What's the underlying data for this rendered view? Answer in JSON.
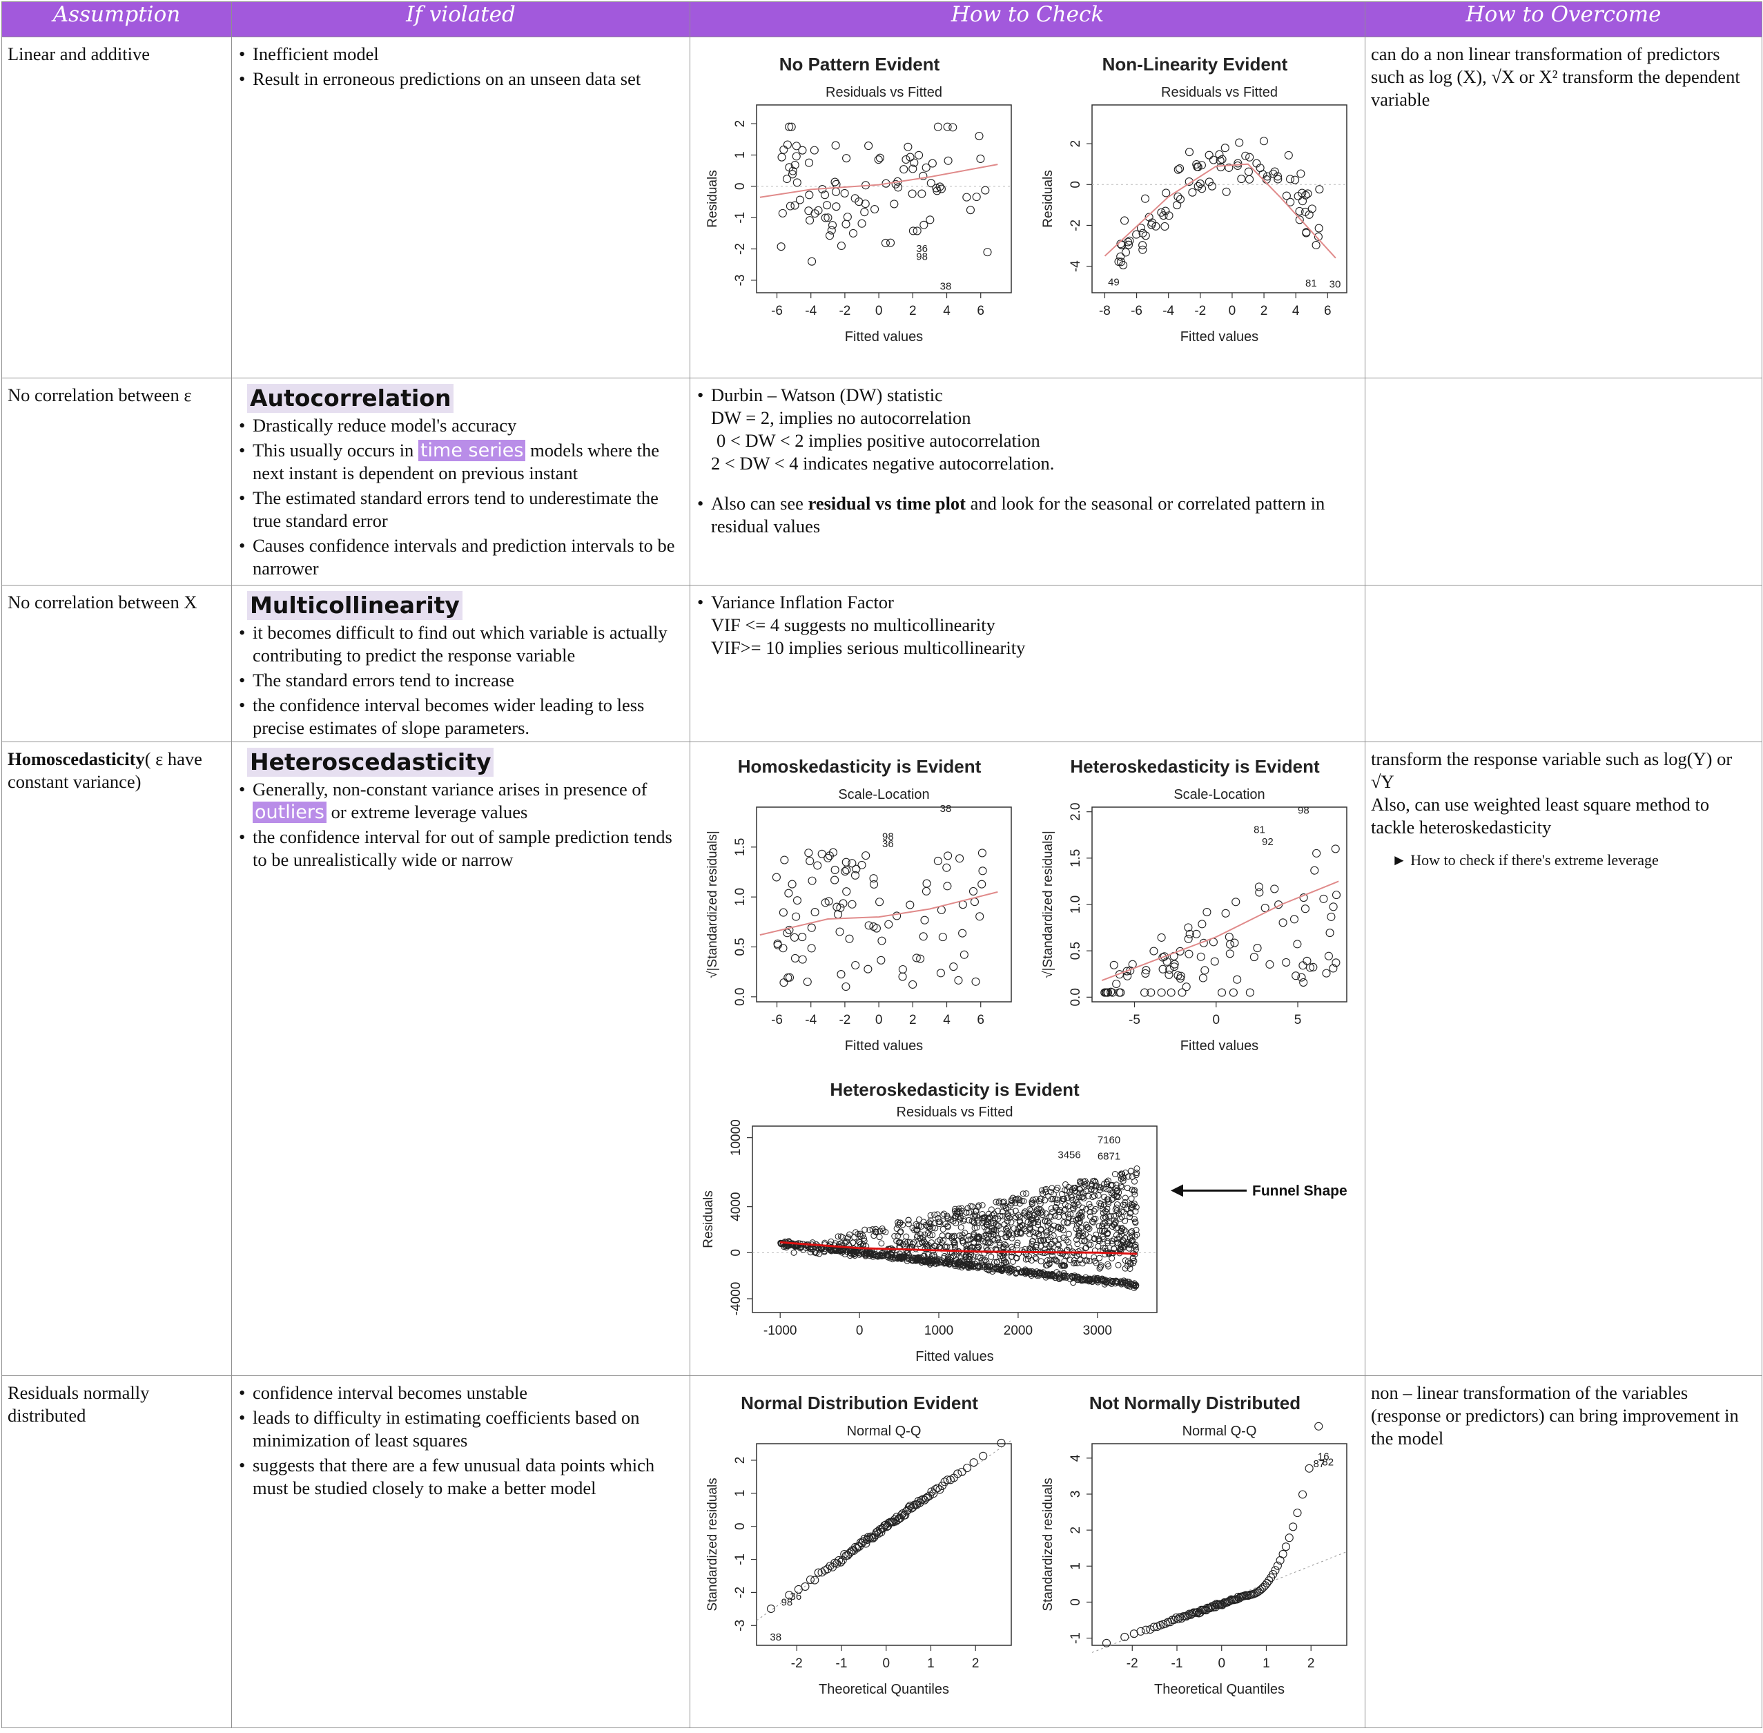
{
  "header": {
    "assumption": "Assumption",
    "if_violated": "If violated",
    "how_to_check": "How to Check",
    "how_to_overcome": "How to Overcome"
  },
  "rows": {
    "linear": {
      "assumption": "Linear and additive",
      "violated": [
        "Inefficient model",
        "Result in erroneous predictions on an unseen data set"
      ],
      "overcome": "can do a non linear transformation of predictors such as log (X), √X or X² transform the dependent variable"
    },
    "autocorr": {
      "assumption": "No correlation between ε",
      "heading": "Autocorrelation",
      "b1": "Drastically reduce model's accuracy",
      "b2_pre": "This usually occurs in",
      "b2_hl": "time series",
      "b2_post": "models where the next instant is dependent on previous instant",
      "b3": "The estimated standard errors tend to underestimate the true standard error",
      "b4": "Causes confidence intervals and prediction intervals to be narrower",
      "check_title": "Durbin – Watson (DW) statistic",
      "check_l1": "DW = 2, implies no autocorrelation",
      "check_l2": "0 < DW < 2 implies positive autocorrelation",
      "check_l3": "2 < DW < 4 indicates negative autocorrelation.",
      "check2_pre": "Also can see",
      "check2_bold": "residual vs time plot",
      "check2_post": "and look for the seasonal or correlated pattern in residual values"
    },
    "multicol": {
      "assumption": "No correlation between X",
      "heading": "Multicollinearity",
      "violated": [
        "it becomes difficult to find out which variable is actually contributing to predict the response variable",
        "The standard errors tend to increase",
        " the confidence interval becomes wider leading to less precise estimates of slope parameters."
      ],
      "check_title": "Variance Inflation Factor",
      "check_l1": "VIF <= 4 suggests no multicollinearity",
      "check_l2": "VIF>= 10 implies serious multicollinearity"
    },
    "homo": {
      "assumption_bold": "Homoscedasticity",
      "assumption_rest": "( ε have constant variance)",
      "heading": "Heteroscedasticity",
      "b1_pre": "Generally, non-constant variance arises in presence of",
      "b1_hl": "outliers",
      "b1_post": "or extreme leverage values",
      "b2": "the confidence interval for out of sample prediction tends to be unrealistically wide or narrow",
      "overcome_l1": "transform the response variable such as log(Y) or √Y",
      "overcome_l2": "Also, can use weighted least square method to tackle heteroskedasticity",
      "link": "► How to check if there's extreme leverage"
    },
    "normal": {
      "assumption": "Residuals normally distributed",
      "violated": [
        "confidence interval becomes unstable",
        "leads to difficulty in estimating coefficients based on minimization of least squares",
        "suggests that there are a few unusual data points which must be studied closely to make a better model"
      ],
      "overcome": "non – linear transformation of the variables (response or predictors) can bring improvement in the model"
    }
  },
  "chart_data": [
    {
      "id": "c1",
      "type": "scatter",
      "heading": "No Pattern Evident",
      "title": "Residuals vs Fitted",
      "xlabel": "Fitted values",
      "ylabel": "Residuals",
      "xlim": [
        -7.2,
        7.8
      ],
      "ylim": [
        -3.4,
        2.6
      ],
      "xticks": [
        -6,
        -4,
        -2,
        0,
        2,
        4,
        6
      ],
      "yticks": [
        -3,
        -2,
        -1,
        0,
        1,
        2
      ],
      "labels": [
        {
          "x": 2.2,
          "y": -2.1,
          "t": "36"
        },
        {
          "x": 2.2,
          "y": -2.35,
          "t": "98"
        },
        {
          "x": 3.6,
          "y": -3.3,
          "t": "38"
        }
      ],
      "trend": [
        [
          -7,
          -0.35
        ],
        [
          -4,
          -0.1
        ],
        [
          0,
          0.05
        ],
        [
          3,
          0.3
        ],
        [
          7,
          0.7
        ]
      ],
      "pattern": "random",
      "seed": 11,
      "n": 95
    },
    {
      "id": "c2",
      "type": "scatter",
      "heading": "Non-Linearity Evident",
      "title": "Residuals vs Fitted",
      "xlabel": "Fitted values",
      "ylabel": "Residuals",
      "xlim": [
        -8.8,
        7.2
      ],
      "ylim": [
        -5.3,
        3.9
      ],
      "xticks": [
        -8,
        -6,
        -4,
        -2,
        0,
        2,
        4,
        6
      ],
      "yticks": [
        -4,
        -2,
        0,
        2
      ],
      "labels": [
        {
          "x": -7.8,
          "y": -4.95,
          "t": "49"
        },
        {
          "x": 4.6,
          "y": -5.0,
          "t": "81"
        },
        {
          "x": 6.1,
          "y": -5.05,
          "t": "30"
        }
      ],
      "trend": [
        [
          -8,
          -3.5
        ],
        [
          -4,
          -0.6
        ],
        [
          -1,
          0.9
        ],
        [
          1,
          1.0
        ],
        [
          3,
          -0.6
        ],
        [
          6.5,
          -3.6
        ]
      ],
      "pattern": "arch",
      "seed": 23,
      "n": 95
    },
    {
      "id": "c3",
      "type": "scatter",
      "heading": "Homoskedasticity is Evident",
      "title": "Scale-Location",
      "xlabel": "Fitted values",
      "ylabel": "√|Standardized residuals|",
      "xlim": [
        -7.2,
        7.8
      ],
      "ylim": [
        -0.05,
        1.9
      ],
      "xticks": [
        -6,
        -4,
        -2,
        0,
        2,
        4,
        6
      ],
      "yticks": [
        0.0,
        0.5,
        1.0,
        1.5
      ],
      "labels": [
        {
          "x": 3.6,
          "y": 1.85,
          "t": "38"
        },
        {
          "x": 0.2,
          "y": 1.57,
          "t": "98"
        },
        {
          "x": 0.2,
          "y": 1.5,
          "t": "36"
        }
      ],
      "trend": [
        [
          -7,
          0.62
        ],
        [
          -3,
          0.78
        ],
        [
          0,
          0.8
        ],
        [
          3,
          0.88
        ],
        [
          7,
          1.05
        ]
      ],
      "pattern": "uniform",
      "seed": 37,
      "n": 95
    },
    {
      "id": "c4",
      "type": "scatter",
      "heading": "Heteroskedasticity is Evident",
      "title": "Scale-Location",
      "xlabel": "Fitted values",
      "ylabel": "√|Standardized residuals|",
      "xlim": [
        -7.6,
        8.0
      ],
      "ylim": [
        -0.05,
        2.05
      ],
      "xticks": [
        -5,
        0,
        5
      ],
      "yticks": [
        0.0,
        0.5,
        1.0,
        1.5,
        2.0
      ],
      "labels": [
        {
          "x": 5.0,
          "y": 1.98,
          "t": "98"
        },
        {
          "x": 2.3,
          "y": 1.77,
          "t": "81"
        },
        {
          "x": 2.8,
          "y": 1.64,
          "t": "92"
        }
      ],
      "trend": [
        [
          -7,
          0.18
        ],
        [
          -3,
          0.45
        ],
        [
          0,
          0.65
        ],
        [
          4,
          1.0
        ],
        [
          7.5,
          1.25
        ]
      ],
      "pattern": "fan",
      "seed": 41,
      "n": 95
    },
    {
      "id": "c5",
      "type": "scatter",
      "heading": "Heteroskedasticity is Evident",
      "title": "Residuals vs Fitted",
      "xlabel": "Fitted values",
      "ylabel": "Residuals",
      "xlim": [
        -1350,
        3750
      ],
      "ylim": [
        -5200,
        11000
      ],
      "xticks": [
        -1000,
        0,
        1000,
        2000,
        3000
      ],
      "yticks": [
        -4000,
        0,
        4000,
        10000
      ],
      "labels": [
        {
          "x": 3000,
          "y": 9500,
          "t": "7160"
        },
        {
          "x": 2500,
          "y": 8200,
          "t": "3456"
        },
        {
          "x": 3000,
          "y": 8100,
          "t": "6871"
        }
      ],
      "trend": [
        [
          -1000,
          900
        ],
        [
          0,
          400
        ],
        [
          1500,
          100
        ],
        [
          3000,
          0
        ],
        [
          3500,
          -100
        ]
      ],
      "annotation": "Funnel Shape",
      "pattern": "funnel",
      "seed": 53,
      "n": 1600
    },
    {
      "id": "c6",
      "type": "scatter",
      "heading": "Normal Distribution Evident",
      "title": "Normal Q-Q",
      "xlabel": "Theoretical Quantiles",
      "ylabel": "Standardized residuals",
      "xlim": [
        -2.9,
        2.8
      ],
      "ylim": [
        -3.6,
        2.5
      ],
      "xticks": [
        -2,
        -1,
        0,
        1,
        2
      ],
      "yticks": [
        -3,
        -2,
        -1,
        0,
        1,
        2
      ],
      "labels": [
        {
          "x": -2.35,
          "y": -2.4,
          "t": "98"
        },
        {
          "x": -2.15,
          "y": -2.22,
          "t": "36"
        },
        {
          "x": -2.6,
          "y": -3.45,
          "t": "38"
        }
      ],
      "refline": [
        [
          -2.9,
          -2.85
        ],
        [
          2.8,
          2.6
        ]
      ],
      "pattern": "qqnormal",
      "seed": 61,
      "n": 100
    },
    {
      "id": "c7",
      "type": "scatter",
      "heading": "Not Normally Distributed",
      "title": "Normal Q-Q",
      "xlabel": "Theoretical Quantiles",
      "ylabel": "Standardized residuals",
      "xlim": [
        -2.9,
        2.8
      ],
      "ylim": [
        -1.2,
        4.4
      ],
      "xticks": [
        -2,
        -1,
        0,
        1,
        2
      ],
      "yticks": [
        -1,
        0,
        1,
        2,
        3,
        4
      ],
      "labels": [
        {
          "x": 2.15,
          "y": 3.95,
          "t": "16"
        },
        {
          "x": 2.05,
          "y": 3.75,
          "t": "87"
        },
        {
          "x": 2.25,
          "y": 3.8,
          "t": "82"
        }
      ],
      "refline": [
        [
          -2.9,
          -1.4
        ],
        [
          2.8,
          1.4
        ]
      ],
      "pattern": "qqskew",
      "seed": 71,
      "n": 100
    }
  ]
}
